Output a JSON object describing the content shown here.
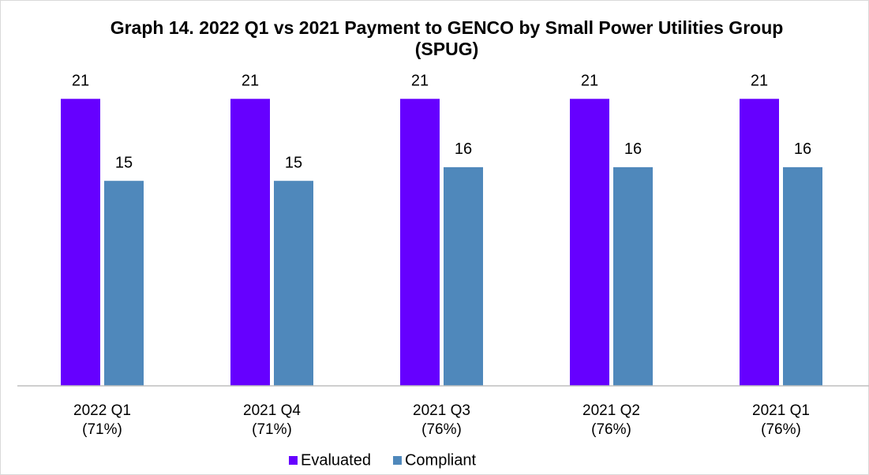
{
  "chart_data": {
    "type": "bar",
    "title": "Graph 14. 2022 Q1 vs 2021 Payment to GENCO by Small Power Utilities Group (SPUG)",
    "categories": [
      [
        "2022 Q1",
        "(71%)"
      ],
      [
        "2021 Q4",
        "(71%)"
      ],
      [
        "2021 Q3",
        "(76%)"
      ],
      [
        "2021 Q2",
        "(76%)"
      ],
      [
        "2021 Q1",
        "(76%)"
      ]
    ],
    "series": [
      {
        "name": "Evaluated",
        "color": "#6600ff",
        "values": [
          21,
          21,
          21,
          21,
          21
        ]
      },
      {
        "name": "Compliant",
        "color": "#4f88bb",
        "values": [
          15,
          15,
          16,
          16,
          16
        ]
      }
    ],
    "ylim": [
      0,
      25
    ],
    "legend": "bottom"
  }
}
